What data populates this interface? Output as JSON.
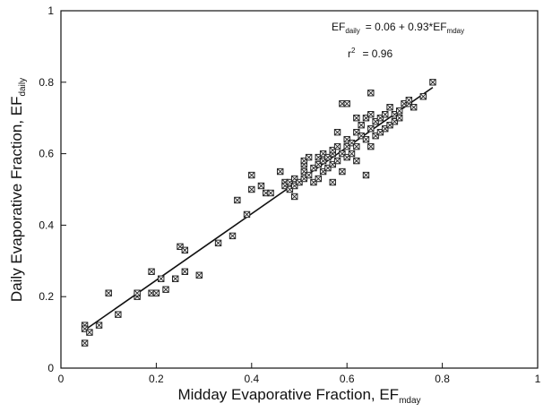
{
  "chart_data": {
    "type": "scatter",
    "x_label": {
      "text": "Midday Evaporative Fraction, EF",
      "sub": "mday"
    },
    "y_label": {
      "text": "Daily Evaporative Fraction, EF",
      "sub": "daily"
    },
    "equation": {
      "lhs": "EF",
      "lhs_sub": "daily",
      "rhs": "=  0.06 + 0.93*EF",
      "rhs_sub": "mday"
    },
    "r2": {
      "text": "r",
      "sup": "2",
      "rhs": "=  0.96"
    },
    "fit": {
      "intercept": 0.06,
      "slope": 0.93,
      "x_range": [
        0.05,
        0.78
      ]
    },
    "color": "#222",
    "xlim": [
      0,
      1
    ],
    "ylim": [
      0,
      1
    ],
    "xticks": [
      0,
      0.2,
      0.4,
      0.6,
      0.8,
      1
    ],
    "yticks": [
      0,
      0.2,
      0.4,
      0.6,
      0.8,
      1
    ],
    "x": [
      0.05,
      0.05,
      0.05,
      0.06,
      0.08,
      0.1,
      0.12,
      0.16,
      0.16,
      0.19,
      0.19,
      0.2,
      0.21,
      0.22,
      0.24,
      0.25,
      0.26,
      0.26,
      0.29,
      0.33,
      0.36,
      0.37,
      0.39,
      0.4,
      0.4,
      0.42,
      0.43,
      0.44,
      0.46,
      0.47,
      0.47,
      0.48,
      0.48,
      0.49,
      0.49,
      0.49,
      0.5,
      0.51,
      0.51,
      0.51,
      0.51,
      0.52,
      0.52,
      0.53,
      0.53,
      0.54,
      0.54,
      0.54,
      0.55,
      0.55,
      0.55,
      0.56,
      0.56,
      0.57,
      0.57,
      0.57,
      0.57,
      0.58,
      0.58,
      0.58,
      0.59,
      0.59,
      0.59,
      0.6,
      0.6,
      0.6,
      0.6,
      0.61,
      0.61,
      0.62,
      0.62,
      0.62,
      0.62,
      0.63,
      0.63,
      0.64,
      0.64,
      0.64,
      0.65,
      0.65,
      0.65,
      0.65,
      0.66,
      0.66,
      0.67,
      0.67,
      0.68,
      0.68,
      0.69,
      0.69,
      0.7,
      0.7,
      0.71,
      0.71,
      0.72,
      0.73,
      0.73,
      0.74,
      0.76,
      0.78
    ],
    "values": [
      0.12,
      0.11,
      0.07,
      0.1,
      0.12,
      0.21,
      0.15,
      0.2,
      0.21,
      0.21,
      0.27,
      0.21,
      0.25,
      0.22,
      0.25,
      0.34,
      0.33,
      0.27,
      0.26,
      0.35,
      0.37,
      0.47,
      0.43,
      0.5,
      0.54,
      0.51,
      0.49,
      0.49,
      0.55,
      0.52,
      0.51,
      0.5,
      0.52,
      0.48,
      0.51,
      0.53,
      0.52,
      0.53,
      0.55,
      0.57,
      0.58,
      0.54,
      0.59,
      0.52,
      0.56,
      0.53,
      0.57,
      0.59,
      0.55,
      0.58,
      0.6,
      0.56,
      0.59,
      0.52,
      0.57,
      0.6,
      0.61,
      0.58,
      0.62,
      0.66,
      0.74,
      0.55,
      0.6,
      0.59,
      0.62,
      0.64,
      0.74,
      0.6,
      0.63,
      0.58,
      0.62,
      0.66,
      0.7,
      0.65,
      0.68,
      0.54,
      0.64,
      0.7,
      0.62,
      0.67,
      0.71,
      0.77,
      0.65,
      0.69,
      0.66,
      0.7,
      0.67,
      0.71,
      0.68,
      0.73,
      0.69,
      0.71,
      0.7,
      0.72,
      0.74,
      0.74,
      0.75,
      0.73,
      0.76,
      0.8
    ]
  }
}
